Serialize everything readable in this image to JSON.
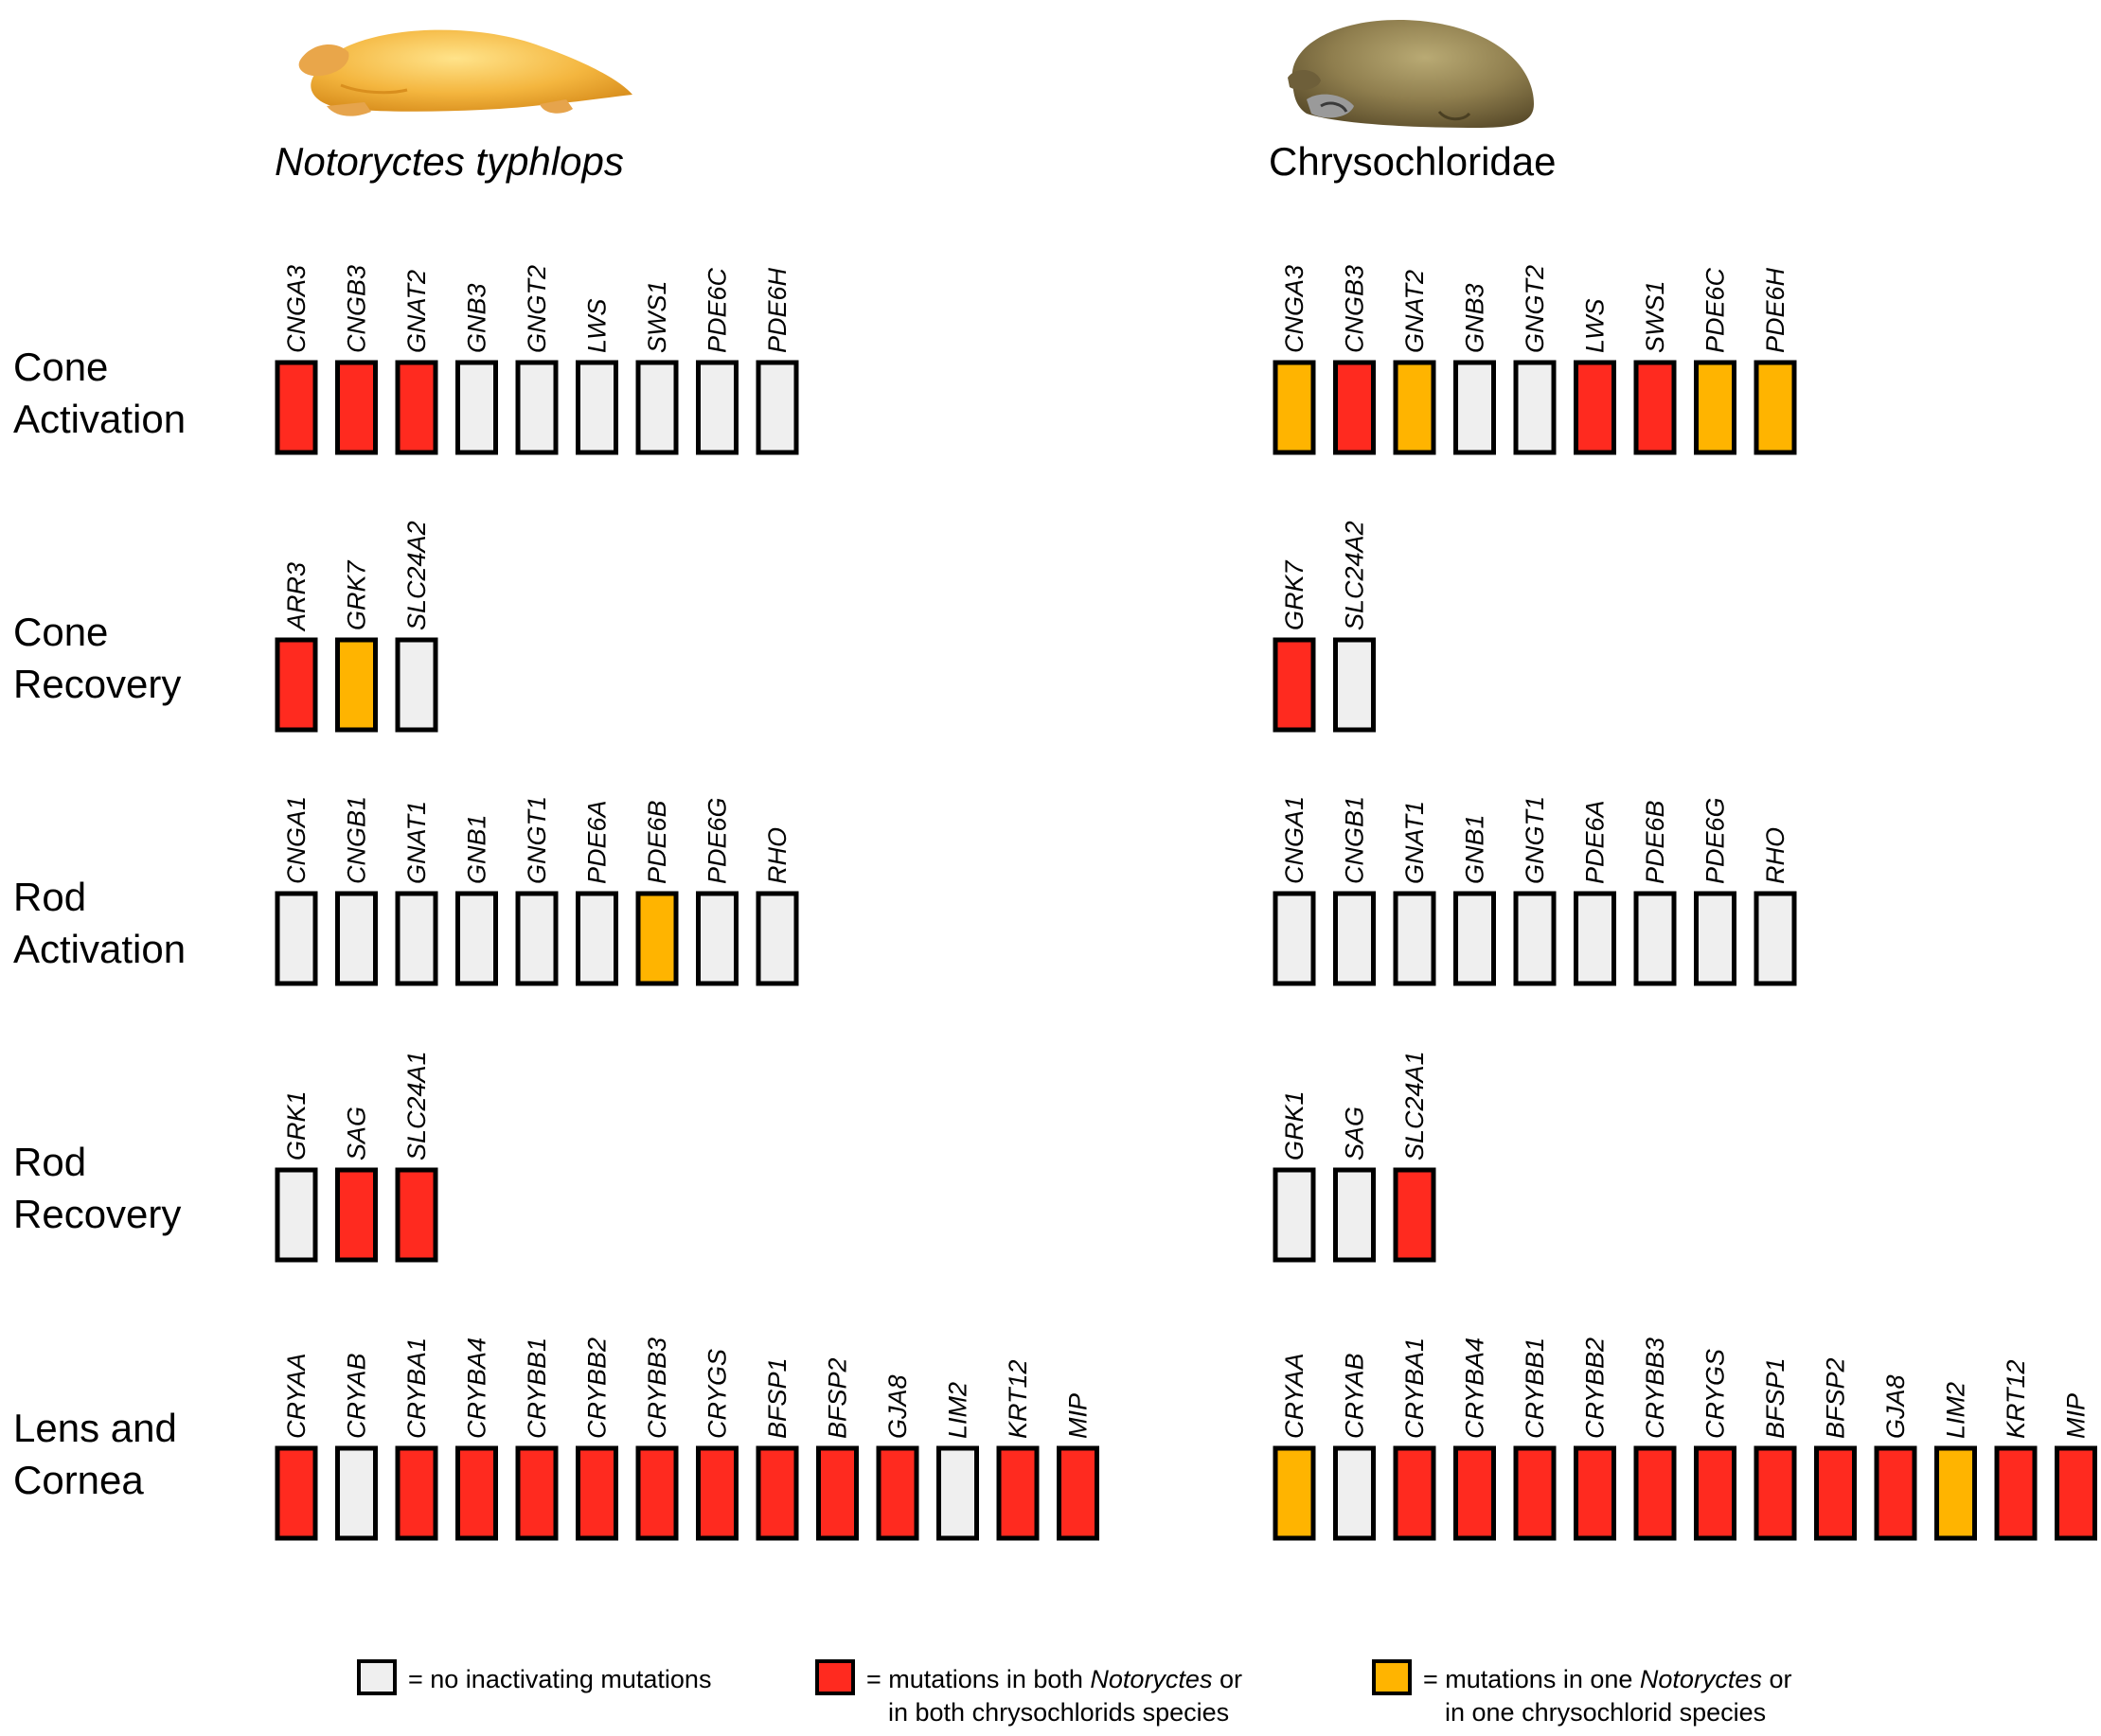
{
  "species": [
    {
      "name": "Notoryctes typhlops",
      "italic": true,
      "illustration": "marsupial-mole-illustration",
      "body_color": "#F4B63F"
    },
    {
      "name": "Chrysochloridae",
      "italic": false,
      "illustration": "golden-mole-illustration",
      "body_color": "#8F7E4E"
    }
  ],
  "colors": {
    "none": "#EFEFEF",
    "both": "#FF2A1F",
    "one": "#FFB400",
    "outline": "#000000"
  },
  "categories": [
    {
      "label": [
        "Cone",
        "Activation"
      ],
      "groups": [
        {
          "genes": [
            "CNGA3",
            "CNGB3",
            "GNAT2",
            "GNB3",
            "GNGT2",
            "LWS",
            "SWS1",
            "PDE6C",
            "PDE6H"
          ],
          "status": [
            "both",
            "both",
            "both",
            "none",
            "none",
            "none",
            "none",
            "none",
            "none"
          ]
        },
        {
          "genes": [
            "CNGA3",
            "CNGB3",
            "GNAT2",
            "GNB3",
            "GNGT2",
            "LWS",
            "SWS1",
            "PDE6C",
            "PDE6H"
          ],
          "status": [
            "one",
            "both",
            "one",
            "none",
            "none",
            "both",
            "both",
            "one",
            "one"
          ]
        }
      ]
    },
    {
      "label": [
        "Cone",
        "Recovery"
      ],
      "groups": [
        {
          "genes": [
            "ARR3",
            "GRK7",
            "SLC24A2"
          ],
          "status": [
            "both",
            "one",
            "none"
          ]
        },
        {
          "genes": [
            "GRK7",
            "SLC24A2"
          ],
          "status": [
            "both",
            "none"
          ]
        }
      ]
    },
    {
      "label": [
        "Rod",
        "Activation"
      ],
      "groups": [
        {
          "genes": [
            "CNGA1",
            "CNGB1",
            "GNAT1",
            "GNB1",
            "GNGT1",
            "PDE6A",
            "PDE6B",
            "PDE6G",
            "RHO"
          ],
          "status": [
            "none",
            "none",
            "none",
            "none",
            "none",
            "none",
            "one",
            "none",
            "none"
          ]
        },
        {
          "genes": [
            "CNGA1",
            "CNGB1",
            "GNAT1",
            "GNB1",
            "GNGT1",
            "PDE6A",
            "PDE6B",
            "PDE6G",
            "RHO"
          ],
          "status": [
            "none",
            "none",
            "none",
            "none",
            "none",
            "none",
            "none",
            "none",
            "none"
          ]
        }
      ]
    },
    {
      "label": [
        "Rod",
        "Recovery"
      ],
      "groups": [
        {
          "genes": [
            "GRK1",
            "SAG",
            "SLC24A1"
          ],
          "status": [
            "none",
            "both",
            "both"
          ]
        },
        {
          "genes": [
            "GRK1",
            "SAG",
            "SLC24A1"
          ],
          "status": [
            "none",
            "none",
            "both"
          ]
        }
      ]
    },
    {
      "label": [
        "Lens and",
        "Cornea"
      ],
      "groups": [
        {
          "genes": [
            "CRYAA",
            "CRYAB",
            "CRYBA1",
            "CRYBA4",
            "CRYBB1",
            "CRYBB2",
            "CRYBB3",
            "CRYGS",
            "BFSP1",
            "BFSP2",
            "GJA8",
            "LIM2",
            "KRT12",
            "MIP"
          ],
          "status": [
            "both",
            "none",
            "both",
            "both",
            "both",
            "both",
            "both",
            "both",
            "both",
            "both",
            "both",
            "none",
            "both",
            "both"
          ]
        },
        {
          "genes": [
            "CRYAA",
            "CRYAB",
            "CRYBA1",
            "CRYBA4",
            "CRYBB1",
            "CRYBB2",
            "CRYBB3",
            "CRYGS",
            "BFSP1",
            "BFSP2",
            "GJA8",
            "LIM2",
            "KRT12",
            "MIP"
          ],
          "status": [
            "one",
            "none",
            "both",
            "both",
            "both",
            "both",
            "both",
            "both",
            "both",
            "both",
            "both",
            "one",
            "both",
            "both"
          ]
        }
      ]
    }
  ],
  "legend": [
    {
      "key": "none",
      "lines": [
        [
          {
            "t": "= no inactivating mutations",
            "i": false
          }
        ]
      ]
    },
    {
      "key": "both",
      "lines": [
        [
          {
            "t": "= mutations in both ",
            "i": false
          },
          {
            "t": "Notoryctes",
            "i": true
          },
          {
            "t": " or",
            "i": false
          }
        ],
        [
          {
            "t": "in both chrysochlorids species",
            "i": false
          }
        ]
      ]
    },
    {
      "key": "one",
      "lines": [
        [
          {
            "t": "= mutations in one ",
            "i": false
          },
          {
            "t": "Notoryctes",
            "i": true
          },
          {
            "t": " or",
            "i": false
          }
        ],
        [
          {
            "t": "in one chrysochlorid species",
            "i": false
          }
        ]
      ]
    }
  ]
}
